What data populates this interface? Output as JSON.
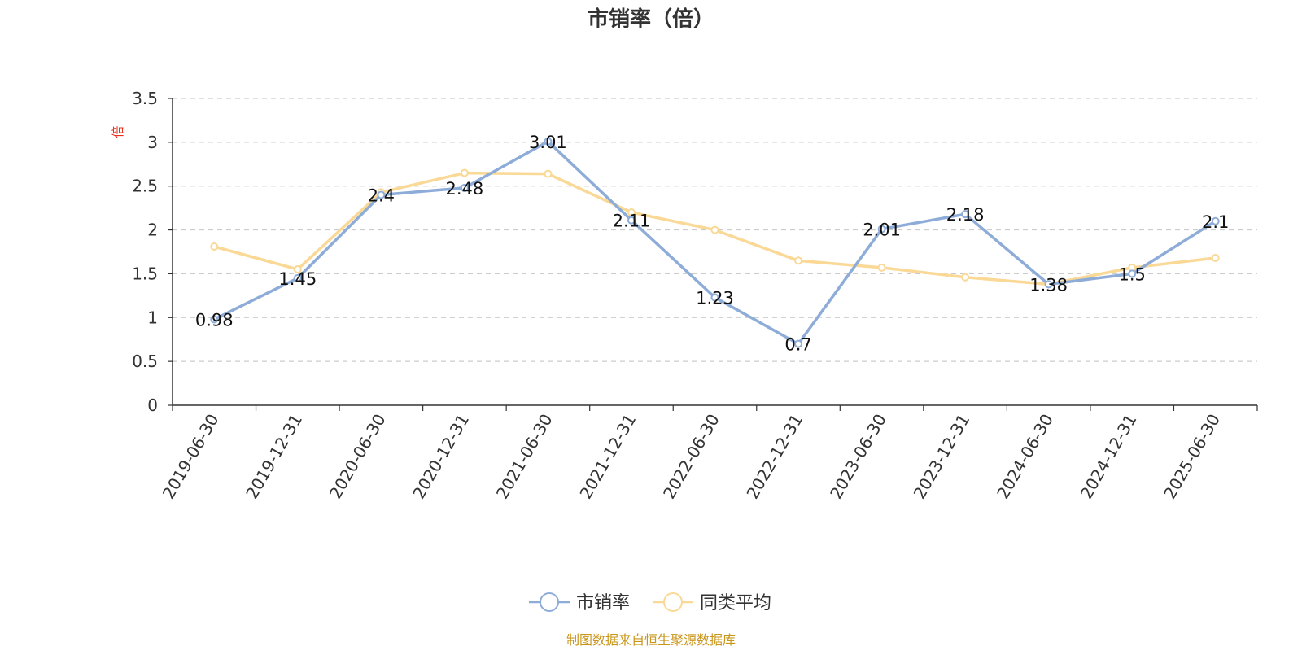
{
  "chart_data": {
    "type": "line",
    "title": "市销率（倍）",
    "ylabel": "倍",
    "ylim": [
      0,
      3.5
    ],
    "yticks": [
      0,
      0.5,
      1,
      1.5,
      2,
      2.5,
      3,
      3.5
    ],
    "grid": "horizontal dashed",
    "legend_position": "bottom",
    "categories": [
      "2019-06-30",
      "2019-12-31",
      "2020-06-30",
      "2020-12-31",
      "2021-06-30",
      "2021-12-31",
      "2022-06-30",
      "2022-12-31",
      "2023-06-30",
      "2023-12-31",
      "2024-06-30",
      "2024-12-31",
      "2025-06-30"
    ],
    "series": [
      {
        "name": "市销率",
        "color": "#8eacd8",
        "values": [
          0.98,
          1.45,
          2.4,
          2.48,
          3.01,
          2.11,
          1.23,
          0.7,
          2.01,
          2.18,
          1.38,
          1.5,
          2.1
        ],
        "data_labels": [
          "0.98",
          "1.45",
          "2.4",
          "2.48",
          "3.01",
          "2.11",
          "1.23",
          "0.7",
          "2.01",
          "2.18",
          "1.38",
          "1.5",
          "2.1"
        ]
      },
      {
        "name": "同类平均",
        "color": "#fad896",
        "values": [
          1.81,
          1.55,
          2.43,
          2.65,
          2.64,
          2.2,
          2.0,
          1.65,
          1.57,
          1.46,
          1.38,
          1.57,
          1.68
        ]
      }
    ]
  },
  "source": "制图数据来自恒生聚源数据库"
}
